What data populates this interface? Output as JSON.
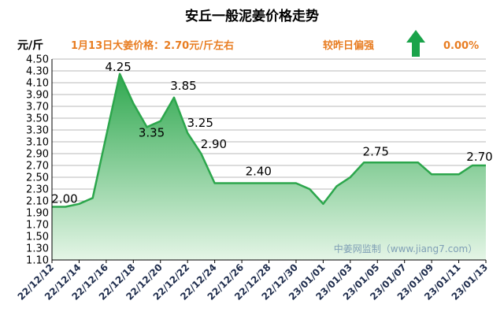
{
  "header": {
    "title": "安丘一般泥姜价格走势",
    "unit": "元/斤",
    "price_text": "1月13日大姜价格：2.70元/斤左右",
    "compare_label": "较昨日偏强",
    "change_pct": "0.00%",
    "trend": "up"
  },
  "watermark": "中姜网监制（www.jiang7.com）",
  "colors": {
    "accent": "#e87d22",
    "arrow": "#1aa34a",
    "line": "#2ca64c",
    "fill_top": "#2fa84f",
    "fill_bottom": "#e4f5e6",
    "grid": "#a0a0a0"
  },
  "chart_data": {
    "type": "area",
    "title": "安丘一般泥姜价格走势",
    "ylabel": "元/斤",
    "ylim": [
      1.1,
      4.5
    ],
    "yticks": [
      "4.50",
      "4.30",
      "4.10",
      "3.90",
      "3.70",
      "3.50",
      "3.30",
      "3.10",
      "2.90",
      "2.70",
      "2.50",
      "2.30",
      "2.10",
      "1.90",
      "1.70",
      "1.50",
      "1.30",
      "1.10"
    ],
    "xtick_labels": [
      "22/12/12",
      "22/12/14",
      "22/12/16",
      "22/12/18",
      "22/12/20",
      "22/12/22",
      "22/12/24",
      "22/12/26",
      "22/12/28",
      "22/12/30",
      "23/01/01",
      "23/01/03",
      "23/01/05",
      "23/01/07",
      "23/01/09",
      "23/01/11",
      "23/01/13"
    ],
    "x": [
      "22/12/12",
      "22/12/13",
      "22/12/14",
      "22/12/15",
      "22/12/16",
      "22/12/17",
      "22/12/18",
      "22/12/19",
      "22/12/20",
      "22/12/21",
      "22/12/22",
      "22/12/23",
      "22/12/24",
      "22/12/25",
      "22/12/26",
      "22/12/27",
      "22/12/28",
      "22/12/29",
      "22/12/30",
      "22/12/31",
      "23/01/01",
      "23/01/02",
      "23/01/03",
      "23/01/04",
      "23/01/05",
      "23/01/06",
      "23/01/07",
      "23/01/08",
      "23/01/09",
      "23/01/10",
      "23/01/11",
      "23/01/12",
      "23/01/13"
    ],
    "values": [
      2.0,
      2.0,
      2.05,
      2.15,
      3.2,
      4.25,
      3.75,
      3.35,
      3.45,
      3.85,
      3.25,
      2.9,
      2.4,
      2.4,
      2.4,
      2.4,
      2.4,
      2.4,
      2.4,
      2.3,
      2.05,
      2.35,
      2.5,
      2.75,
      2.75,
      2.75,
      2.75,
      2.75,
      2.55,
      2.55,
      2.55,
      2.7,
      2.7
    ],
    "data_labels": [
      {
        "x": "22/12/12",
        "text": "2.00"
      },
      {
        "x": "22/12/17",
        "text": "4.25"
      },
      {
        "x": "22/12/19",
        "text": "3.35"
      },
      {
        "x": "22/12/21",
        "text": "3.85"
      },
      {
        "x": "22/12/22",
        "text": "3.25"
      },
      {
        "x": "22/12/23",
        "text": "2.90"
      },
      {
        "x": "22/12/27",
        "text": "2.40"
      },
      {
        "x": "23/01/05",
        "text": "2.75"
      },
      {
        "x": "23/01/13",
        "text": "2.70"
      }
    ],
    "grid": true,
    "legend": "none"
  }
}
